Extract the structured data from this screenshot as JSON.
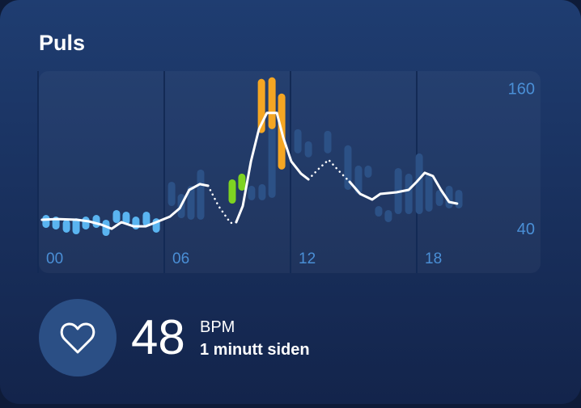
{
  "chart_data": {
    "type": "range",
    "title": "Puls",
    "xlim": [
      0,
      24
    ],
    "xticks": [
      {
        "value": 0,
        "label": "00"
      },
      {
        "value": 6,
        "label": "06"
      },
      {
        "value": 12,
        "label": "12"
      },
      {
        "value": 18,
        "label": "18"
      }
    ],
    "ylim": [
      2,
      175
    ],
    "yticks": [
      40,
      160
    ],
    "grid": true,
    "bars": [
      {
        "color": "#5ab4f0",
        "x": [
          0.38,
          0.85,
          1.35,
          1.81,
          2.27,
          2.77,
          3.23,
          3.73,
          4.19,
          4.65,
          5.15,
          5.62
        ],
        "low": [
          40.7,
          39.3,
          36.6,
          35.2,
          39.3,
          40.7,
          33.8,
          44.9,
          43.5,
          39.3,
          42.1,
          36.6
        ],
        "high": [
          51.8,
          50.4,
          47.7,
          49.0,
          50.4,
          51.8,
          47.7,
          56.0,
          54.6,
          50.4,
          54.6,
          49.0
        ]
      },
      {
        "color": "#2c5186",
        "x": [
          6.35,
          6.81,
          7.27,
          7.73,
          10.15,
          10.65,
          11.12,
          12.35,
          12.85,
          13.77,
          14.73,
          15.23,
          15.69,
          16.19,
          16.65,
          17.12,
          17.62,
          18.12,
          18.58,
          19.08,
          19.54,
          20.0
        ],
        "low": [
          59.4,
          49.0,
          47.7,
          47.7,
          64.3,
          64.3,
          66.4,
          104.5,
          101.1,
          104.5,
          73.3,
          69.8,
          83.7,
          50.4,
          45.6,
          52.5,
          52.5,
          52.5,
          54.6,
          59.4,
          57.4,
          57.4
        ],
        "high": [
          80.2,
          69.8,
          76.8,
          90.7,
          76.8,
          78.2,
          132.3,
          125.3,
          114.9,
          123.9,
          111.5,
          94.1,
          94.1,
          59.4,
          56.0,
          92.0,
          87.2,
          104.5,
          87.2,
          73.3,
          76.8,
          73.3
        ]
      },
      {
        "color": "#7ed321",
        "x": [
          9.23,
          9.69
        ],
        "low": [
          61.5,
          72.6
        ],
        "high": [
          82.3,
          87.2
        ]
      },
      {
        "color": "#f5a623",
        "x": [
          10.62,
          11.12,
          11.58
        ],
        "low": [
          121.9,
          125.3,
          90.7
        ],
        "high": [
          168.3,
          169.7,
          155.8
        ]
      }
    ],
    "x": [
      0.19,
      0.88,
      1.85,
      2.42,
      3.0,
      3.5,
      3.96,
      4.54,
      5.12,
      5.62,
      6.27,
      6.73,
      7.19,
      7.69,
      8.08,
      8.58,
      9.15,
      9.42,
      9.73,
      10.12,
      10.5,
      10.88,
      11.35,
      11.65,
      12.04,
      12.5,
      12.85,
      13.38,
      13.81,
      14.35,
      14.81,
      15.31,
      15.88,
      16.27,
      17.04,
      17.62,
      18.0,
      18.38,
      18.77,
      19.15,
      19.54,
      19.92
    ],
    "lines": [
      {
        "color": "#ffffff",
        "dash": false,
        "values": [
          47.7,
          48.3,
          47.7,
          46.3,
          43.5,
          40.0,
          45.6,
          42.1,
          42.1,
          45.6,
          50.4,
          57.4,
          73.3,
          78.2,
          76.8,
          null,
          null,
          45.6,
          59.4,
          97.6,
          125.3,
          139.2,
          139.2,
          118.4,
          97.6,
          87.2,
          82.3,
          null,
          null,
          null,
          80.2,
          69.8,
          65.0,
          69.8,
          71.2,
          73.3,
          80.2,
          87.9,
          85.1,
          73.3,
          62.9,
          61.5
        ]
      },
      {
        "color": "#ffffff",
        "dash": true,
        "values": [
          null,
          null,
          null,
          null,
          null,
          null,
          null,
          null,
          null,
          null,
          null,
          null,
          null,
          null,
          76.8,
          59.4,
          44.9,
          45.6,
          null,
          null,
          null,
          null,
          null,
          null,
          null,
          null,
          82.3,
          92.0,
          99.0,
          88.6,
          80.2,
          null,
          null,
          null,
          null,
          null,
          null,
          null,
          null,
          null,
          null,
          null
        ]
      }
    ]
  },
  "reading": {
    "value": 48,
    "unit": "BPM",
    "time": "1 minutt siden"
  }
}
